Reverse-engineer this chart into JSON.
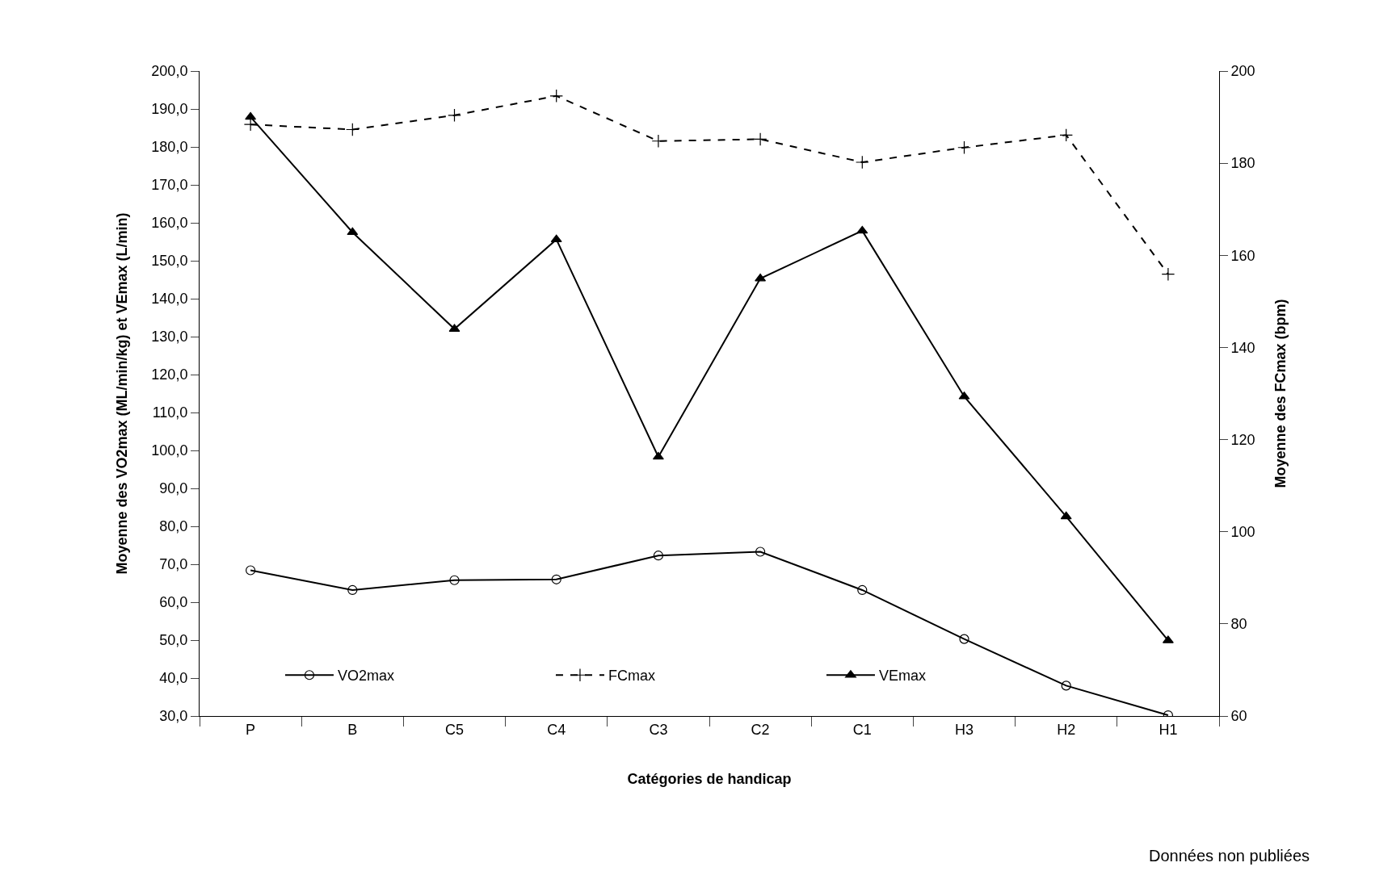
{
  "chart_data": {
    "type": "line",
    "xlabel": "Catégories de handicap",
    "ylabel": "Moyenne des VO2max (ML/min/kg) et VEmax (L/min)",
    "y2label": "Moyenne des FCmax (bpm)",
    "categories": [
      "P",
      "B",
      "C5",
      "C4",
      "C3",
      "C2",
      "C1",
      "H3",
      "H2",
      "H1"
    ],
    "series": [
      {
        "name": "VO2max",
        "color": "#000000",
        "marker": "circle",
        "line_style": "solid",
        "values": [
          68.4,
          63.2,
          65.8,
          66.0,
          72.3,
          73.3,
          63.2,
          50.3,
          38.0,
          30.2
        ]
      },
      {
        "name": "FCmax",
        "color": "#000000",
        "marker": "cross",
        "line_style": "dashed",
        "axis": "y2",
        "values": [
          188.4,
          187.3,
          190.4,
          194.6,
          184.8,
          185.2,
          180.2,
          183.4,
          186.1,
          155.9
        ]
      },
      {
        "name": "VEmax",
        "color": "#000000",
        "marker": "triangle",
        "line_style": "solid",
        "values": [
          187.9,
          157.5,
          132.0,
          155.6,
          98.3,
          145.3,
          157.9,
          114.2,
          82.6,
          49.9
        ]
      }
    ],
    "ylim": [
      30,
      200
    ],
    "yticks": [
      {
        "value": 30,
        "label": "30,0"
      },
      {
        "value": 40,
        "label": "40,0"
      },
      {
        "value": 50,
        "label": "50,0"
      },
      {
        "value": 60,
        "label": "60,0"
      },
      {
        "value": 70,
        "label": "70,0"
      },
      {
        "value": 80,
        "label": "80,0"
      },
      {
        "value": 90,
        "label": "90,0"
      },
      {
        "value": 100,
        "label": "100,0"
      },
      {
        "value": 110,
        "label": "110,0"
      },
      {
        "value": 120,
        "label": "120,0"
      },
      {
        "value": 130,
        "label": "130,0"
      },
      {
        "value": 140,
        "label": "140,0"
      },
      {
        "value": 150,
        "label": "150,0"
      },
      {
        "value": 160,
        "label": "160,0"
      },
      {
        "value": 170,
        "label": "170,0"
      },
      {
        "value": 180,
        "label": "180,0"
      },
      {
        "value": 190,
        "label": "190,0"
      },
      {
        "value": 200,
        "label": "200,0"
      }
    ],
    "y2lim": [
      60,
      200
    ],
    "y2ticks": [
      60,
      80,
      100,
      120,
      140,
      160,
      180,
      200
    ],
    "legend": "bottom",
    "annotations": [
      "Données non publiées"
    ]
  }
}
